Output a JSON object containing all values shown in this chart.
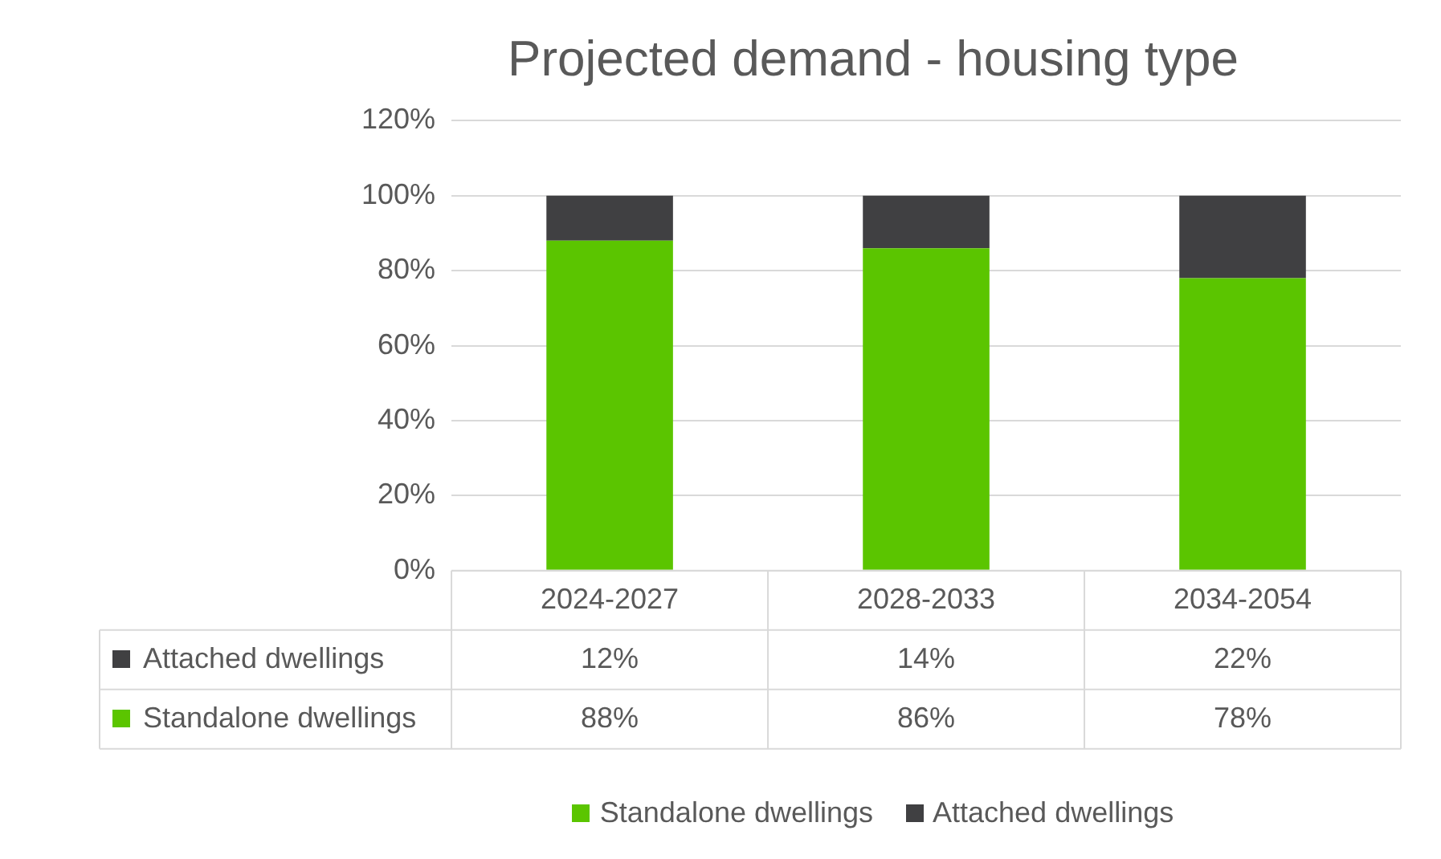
{
  "chart_data": {
    "type": "bar",
    "title": "Projected demand - housing type",
    "categories": [
      "2024-2027",
      "2028-2033",
      "2034-2054"
    ],
    "stacked": true,
    "series": [
      {
        "name": "Standalone dwellings",
        "color": "#5bc500",
        "values": [
          88,
          86,
          78
        ],
        "value_labels": [
          "88%",
          "86%",
          "78%"
        ]
      },
      {
        "name": "Attached dwellings",
        "color": "#404042",
        "values": [
          12,
          14,
          22
        ],
        "value_labels": [
          "12%",
          "14%",
          "22%"
        ]
      }
    ],
    "ylim": [
      0,
      120
    ],
    "yticks": [
      {
        "value": 0,
        "label": "0%"
      },
      {
        "value": 20,
        "label": "20%"
      },
      {
        "value": 40,
        "label": "40%"
      },
      {
        "value": 60,
        "label": "60%"
      },
      {
        "value": 80,
        "label": "80%"
      },
      {
        "value": 100,
        "label": "100%"
      },
      {
        "value": 120,
        "label": "120%"
      }
    ],
    "grid": "y",
    "legend": "bottom"
  }
}
